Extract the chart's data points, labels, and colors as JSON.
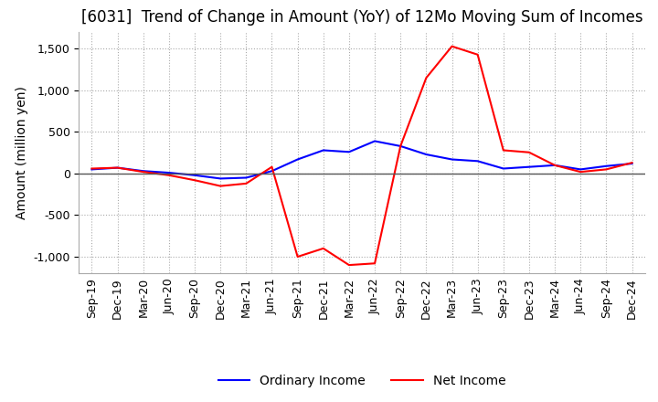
{
  "title": "[6031]  Trend of Change in Amount (YoY) of 12Mo Moving Sum of Incomes",
  "ylabel": "Amount (million yen)",
  "ylim": [
    -1200,
    1700
  ],
  "yticks": [
    -1000,
    -500,
    0,
    500,
    1000,
    1500
  ],
  "x_labels": [
    "Sep-19",
    "Dec-19",
    "Mar-20",
    "Jun-20",
    "Sep-20",
    "Dec-20",
    "Mar-21",
    "Jun-21",
    "Sep-21",
    "Dec-21",
    "Mar-22",
    "Jun-22",
    "Sep-22",
    "Dec-22",
    "Mar-23",
    "Jun-23",
    "Sep-23",
    "Dec-23",
    "Mar-24",
    "Jun-24",
    "Sep-24",
    "Dec-24"
  ],
  "ordinary_income": [
    50,
    70,
    30,
    10,
    -20,
    -60,
    -50,
    30,
    170,
    280,
    260,
    390,
    330,
    230,
    170,
    150,
    60,
    80,
    100,
    50,
    90,
    120
  ],
  "net_income": [
    60,
    70,
    20,
    -20,
    -80,
    -150,
    -120,
    80,
    -1000,
    -900,
    -1100,
    -1080,
    330,
    1150,
    1530,
    1430,
    280,
    255,
    100,
    20,
    50,
    130
  ],
  "ordinary_color": "#0000ff",
  "net_color": "#ff0000",
  "grid_color": "#aaaaaa",
  "background_color": "#ffffff",
  "title_fontsize": 12,
  "label_fontsize": 10,
  "tick_fontsize": 9,
  "legend_fontsize": 10,
  "zero_line_color": "#555555"
}
